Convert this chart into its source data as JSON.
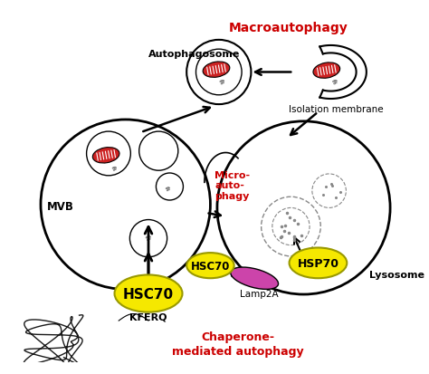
{
  "macroautophagy_label": "Macroautophagy",
  "autophagosome_label": "Autophagosome",
  "isolation_membrane_label": "Isolation membrane",
  "microautophagy_label": "Micro-\nauto-\nphagy",
  "mvb_label": "MVB",
  "hsc70_label1": "HSC70",
  "hsc70_label2": "HSC70",
  "hsp70_label": "HSP70",
  "lamp2a_label": "Lamp2A",
  "kferq_label": "KFERQ",
  "lysosome_label": "Lysosome",
  "chaperone_label": "Chaperone-\nmediated autophagy",
  "yellow_color": "#F5E800",
  "pink_color": "#CC44AA",
  "red_label_color": "#CC0000",
  "black_color": "#000000",
  "white_color": "#FFFFFF",
  "bg_color": "#FFFFFF",
  "mito_color": "#CC2222"
}
